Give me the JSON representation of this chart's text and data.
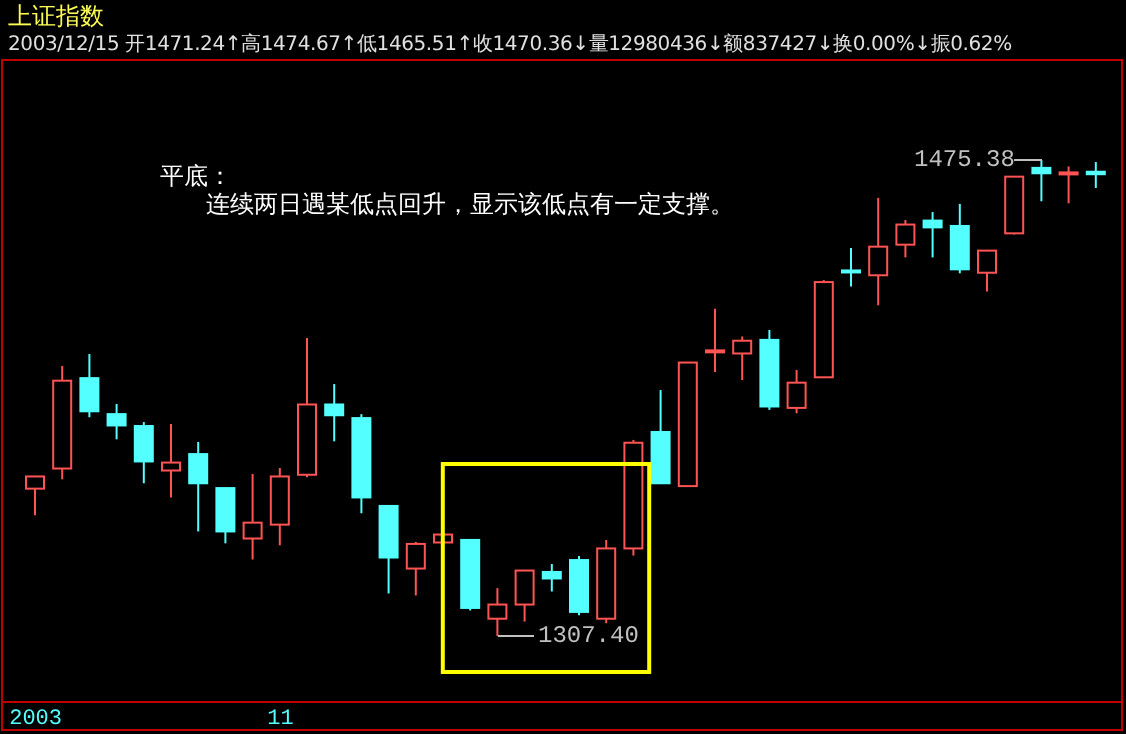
{
  "chart_data": {
    "type": "candlestick",
    "title": "上证指数",
    "subtitle": "2003/12/15 开1471.24↑高1474.67↑低1465.51↑收1470.36↓量12980436↓额837427↓换0.00%↓振0.62%",
    "categories": [
      "2003",
      null,
      null,
      null,
      null,
      null,
      null,
      null,
      null,
      "11",
      null,
      null,
      null,
      null,
      null,
      null,
      null,
      null,
      null,
      null,
      null,
      null,
      null,
      null,
      null,
      null,
      null,
      null,
      null,
      null,
      null,
      null,
      null,
      null,
      null,
      null,
      null,
      null,
      null,
      null
    ],
    "ohlc": [
      [
        1359.4,
        1363.7,
        1350.0,
        1363.7
      ],
      [
        1366.5,
        1402.7,
        1362.7,
        1397.5
      ],
      [
        1398.4,
        1406.9,
        1384.6,
        1386.7
      ],
      [
        1385.7,
        1389.3,
        1376.8,
        1381.7
      ],
      [
        1381.5,
        1382.9,
        1361.3,
        1369.0
      ],
      [
        1365.8,
        1382.2,
        1356.3,
        1368.6
      ],
      [
        1371.6,
        1375.9,
        1344.3,
        1361.3
      ],
      [
        1359.6,
        1359.6,
        1340.1,
        1344.3
      ],
      [
        1341.8,
        1364.6,
        1334.4,
        1347.4
      ],
      [
        1346.7,
        1366.7,
        1339.4,
        1363.7
      ],
      [
        1364.3,
        1412.6,
        1363.4,
        1389.1
      ],
      [
        1389.1,
        1396.3,
        1376.1,
        1385.3
      ],
      [
        1384.3,
        1385.7,
        1350.7,
        1356.3
      ],
      [
        1353.3,
        1353.3,
        1322.4,
        1335.1
      ],
      [
        1331.2,
        1340.6,
        1321.7,
        1339.9
      ],
      [
        1340.4,
        1343.2,
        1340.4,
        1343.2
      ],
      [
        1341.3,
        1341.3,
        1316.4,
        1317.3
      ],
      [
        1313.5,
        1324.3,
        1307.4,
        1318.5
      ],
      [
        1318.5,
        1330.5,
        1312.5,
        1330.5
      ],
      [
        1330.0,
        1332.8,
        1323.1,
        1327.7
      ],
      [
        1334.2,
        1335.6,
        1314.7,
        1315.9
      ],
      [
        1313.5,
        1341.3,
        1311.9,
        1338.3
      ],
      [
        1338.3,
        1376.6,
        1335.8,
        1375.6
      ],
      [
        1379.4,
        1394.2,
        1361.3,
        1361.3
      ],
      [
        1360.3,
        1403.9,
        1360.3,
        1403.9
      ],
      [
        1408.0,
        1422.9,
        1400.6,
        1408.2
      ],
      [
        1407.1,
        1413.1,
        1397.7,
        1411.6
      ],
      [
        1411.9,
        1415.4,
        1387.2,
        1388.4
      ],
      [
        1387.9,
        1401.3,
        1386.0,
        1396.8
      ],
      [
        1398.7,
        1433.0,
        1398.7,
        1432.3
      ],
      [
        1436.4,
        1444.3,
        1430.7,
        1436.0
      ],
      [
        1434.7,
        1462.0,
        1424.1,
        1444.8
      ],
      [
        1445.5,
        1454.2,
        1441.0,
        1452.6
      ],
      [
        1454.0,
        1457.0,
        1441.0,
        1451.6
      ],
      [
        1452.1,
        1459.9,
        1435.4,
        1436.8
      ],
      [
        1435.6,
        1443.4,
        1429.0,
        1443.4
      ],
      [
        1449.5,
        1469.5,
        1449.1,
        1469.5
      ],
      [
        1472.6,
        1475.38,
        1460.8,
        1470.7
      ],
      [
        1470.6,
        1473.1,
        1460.1,
        1471.0
      ],
      [
        1471.24,
        1474.67,
        1465.51,
        1470.36
      ]
    ],
    "colors": [
      "#ff5454",
      "#ff5454",
      "#54ffff",
      "#54ffff",
      "#54ffff",
      "#ff5454",
      "#54ffff",
      "#54ffff",
      "#ff5454",
      "#ff5454",
      "#ff5454",
      "#54ffff",
      "#54ffff",
      "#54ffff",
      "#ff5454",
      "#ff5454",
      "#54ffff",
      "#ff5454",
      "#ff5454",
      "#54ffff",
      "#54ffff",
      "#ff5454",
      "#ff5454",
      "#54ffff",
      "#ff5454",
      "#ff5454",
      "#ff5454",
      "#54ffff",
      "#ff5454",
      "#ff5454",
      "#54ffff",
      "#ff5454",
      "#ff5454",
      "#54ffff",
      "#54ffff",
      "#ff5454",
      "#ff5454",
      "#54ffff",
      "#ff5454",
      "#54ffff"
    ],
    "annotations": [
      "平底：",
      "连续两日遇某低点回升，显示该低点有一定支撑。",
      "1307.40",
      "1475.38"
    ],
    "tick_labels": "x"
  }
}
